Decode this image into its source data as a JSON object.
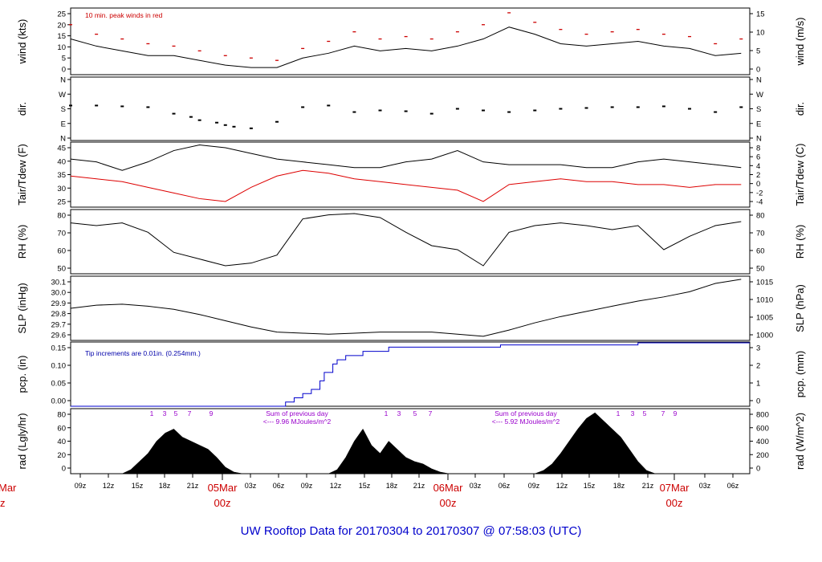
{
  "title": "UW Rooftop Data for 20170304  to  20170307 @ 07:58:03  (UTC)",
  "colors": {
    "frame": "#000000",
    "data": "#000000",
    "peak": "#cc0000",
    "dewpoint": "#dd0000",
    "precip": "#0000cc",
    "note_blue": "#0000aa",
    "note_purple": "#9900cc",
    "day_label": "#cc0000",
    "title": "#0000cc"
  },
  "time_axis": {
    "hour_ticks": [
      "09z",
      "12z",
      "15z",
      "18z",
      "21z",
      "03z",
      "06z",
      "09z",
      "12z",
      "15z",
      "18z",
      "21z",
      "03z",
      "06z",
      "09z",
      "12z",
      "15z",
      "18z",
      "21z",
      "03z",
      "06z"
    ],
    "day_labels": [
      {
        "date": "05Mar",
        "hour": "00z"
      },
      {
        "date": "06Mar",
        "hour": "00z"
      },
      {
        "date": "07Mar",
        "hour": "00z"
      }
    ],
    "left_cut_label": {
      "date": "Mar",
      "hour": "z"
    }
  },
  "chart_data": [
    {
      "id": "wind",
      "type": "line",
      "ylabel": "wind (kts)",
      "ylabel_right": "wind (m/s)",
      "ylim": [
        0,
        28
      ],
      "yticks": [
        "0",
        "5",
        "10",
        "15",
        "20",
        "25"
      ],
      "yticks_right": [
        "0",
        "5",
        "10",
        "15"
      ],
      "annotation": "10 min. peak winds in red",
      "series": [
        {
          "x": [
            0,
            3,
            6,
            9,
            12,
            15,
            18,
            21,
            24,
            27,
            30,
            33,
            36,
            39,
            42,
            45,
            48,
            51,
            54,
            57,
            60,
            63,
            66,
            69,
            72,
            75,
            78
          ],
          "values": [
            15,
            12,
            10,
            8,
            8,
            6,
            4,
            3,
            3,
            7,
            9,
            12,
            10,
            11,
            10,
            12,
            15,
            20,
            17,
            13,
            12,
            13,
            14,
            12,
            11,
            8,
            9
          ]
        },
        {
          "x": [
            0,
            3,
            6,
            9,
            12,
            15,
            18,
            21,
            24,
            27,
            30,
            33,
            36,
            39,
            42,
            45,
            48,
            51,
            54,
            57,
            60,
            63,
            66,
            69,
            72,
            75,
            78
          ],
          "values": [
            21,
            17,
            15,
            13,
            12,
            10,
            8,
            7,
            6,
            11,
            14,
            18,
            15,
            16,
            15,
            18,
            21,
            26,
            22,
            19,
            17,
            18,
            19,
            17,
            16,
            13,
            15
          ]
        }
      ]
    },
    {
      "id": "dir",
      "type": "scatter",
      "ylabel": "dir.",
      "ylabel_right": "dir.",
      "yticks": [
        "N",
        "E",
        "S",
        "W",
        "N"
      ],
      "yticks_right": [
        "N",
        "E",
        "S",
        "W",
        "N"
      ],
      "series": [
        {
          "x": [
            0,
            3,
            6,
            9,
            12,
            14,
            15,
            17,
            18,
            19,
            21,
            24,
            27,
            30,
            33,
            36,
            39,
            42,
            45,
            48,
            51,
            54,
            57,
            60,
            63,
            66,
            69,
            72,
            75,
            78
          ],
          "values": [
            200,
            200,
            195,
            190,
            150,
            130,
            110,
            95,
            80,
            70,
            60,
            100,
            190,
            200,
            160,
            170,
            165,
            150,
            180,
            170,
            160,
            170,
            180,
            185,
            190,
            190,
            195,
            180,
            160,
            190
          ]
        }
      ]
    },
    {
      "id": "temp",
      "type": "line",
      "ylabel": "Tair/Tdew (F)",
      "ylabel_right": "Tair/Tdew (C)",
      "ylim": [
        24,
        47
      ],
      "yticks": [
        "25",
        "30",
        "35",
        "40",
        "45"
      ],
      "yticks_right": [
        "-4",
        "-2",
        "0",
        "2",
        "4",
        "6",
        "8"
      ],
      "series": [
        {
          "x": [
            0,
            3,
            6,
            9,
            12,
            15,
            18,
            21,
            24,
            27,
            30,
            33,
            36,
            39,
            42,
            45,
            48,
            51,
            54,
            57,
            60,
            63,
            66,
            69,
            72,
            75,
            78
          ],
          "values": [
            41,
            40,
            37,
            40,
            44,
            46,
            45,
            43,
            41,
            40,
            39,
            38,
            38,
            40,
            41,
            44,
            40,
            39,
            39,
            39,
            38,
            38,
            40,
            41,
            40,
            39,
            38
          ]
        },
        {
          "x": [
            0,
            3,
            6,
            9,
            12,
            15,
            18,
            21,
            24,
            27,
            30,
            33,
            36,
            39,
            42,
            45,
            48,
            51,
            54,
            57,
            60,
            63,
            66,
            69,
            72,
            75,
            78
          ],
          "values": [
            35,
            34,
            33,
            31,
            29,
            27,
            26,
            31,
            35,
            37,
            36,
            34,
            33,
            32,
            31,
            30,
            26,
            32,
            33,
            34,
            33,
            33,
            32,
            32,
            31,
            32,
            32
          ]
        }
      ]
    },
    {
      "id": "rh",
      "type": "line",
      "ylabel": "RH (%)",
      "ylabel_right": "RH (%)",
      "ylim": [
        44,
        92
      ],
      "yticks": [
        "50",
        "60",
        "70",
        "80"
      ],
      "yticks_right": [
        "50",
        "60",
        "70",
        "80"
      ],
      "series": [
        {
          "x": [
            0,
            3,
            6,
            9,
            12,
            15,
            18,
            21,
            24,
            27,
            30,
            33,
            36,
            39,
            42,
            45,
            48,
            51,
            54,
            57,
            60,
            63,
            66,
            69,
            72,
            75,
            78
          ],
          "values": [
            82,
            80,
            82,
            75,
            60,
            55,
            50,
            52,
            58,
            85,
            88,
            89,
            86,
            75,
            65,
            62,
            50,
            75,
            80,
            82,
            80,
            77,
            80,
            62,
            72,
            80,
            83
          ]
        }
      ]
    },
    {
      "id": "slp",
      "type": "line",
      "ylabel": "SLP (inHg)",
      "ylabel_right": "SLP (hPa)",
      "ylim": [
        29.5,
        30.12
      ],
      "yticks": [
        "29.6",
        "29.7",
        "29.8",
        "29.9",
        "30.0",
        "30.1"
      ],
      "yticks_right": [
        "1000",
        "1005",
        "1010",
        "1015"
      ],
      "series": [
        {
          "x": [
            0,
            3,
            6,
            9,
            12,
            15,
            18,
            21,
            24,
            27,
            30,
            33,
            36,
            39,
            42,
            45,
            48,
            51,
            54,
            57,
            60,
            63,
            66,
            69,
            72,
            75,
            78
          ],
          "values": [
            29.81,
            29.84,
            29.85,
            29.83,
            29.8,
            29.75,
            29.69,
            29.63,
            29.58,
            29.57,
            29.56,
            29.57,
            29.58,
            29.58,
            29.58,
            29.56,
            29.54,
            29.6,
            29.67,
            29.73,
            29.78,
            29.83,
            29.88,
            29.92,
            29.97,
            30.05,
            30.09
          ]
        }
      ]
    },
    {
      "id": "pcp",
      "type": "line",
      "ylabel": "pcp. (in)",
      "ylabel_right": "pcp. (mm)",
      "ylim": [
        0,
        0.152
      ],
      "yticks": [
        "0.00",
        "0.05",
        "0.10",
        "0.15"
      ],
      "yticks_right": [
        "0",
        "1",
        "2",
        "3"
      ],
      "annotation": "Tip increments are 0.01in. (0.254mm.)",
      "series": [
        {
          "x": [
            0,
            24.5,
            25,
            26,
            27,
            28,
            29,
            29.5,
            30.5,
            31,
            32,
            34,
            37,
            39,
            44,
            50,
            66,
            79
          ],
          "values": [
            0,
            0,
            0.01,
            0.02,
            0.03,
            0.04,
            0.06,
            0.08,
            0.1,
            0.11,
            0.12,
            0.13,
            0.14,
            0.14,
            0.14,
            0.145,
            0.15,
            0.15
          ]
        }
      ]
    },
    {
      "id": "rad",
      "type": "area",
      "ylabel": "rad (Lgly/hr)",
      "ylabel_right": "rad (W/m^2)",
      "ylim": [
        0,
        80
      ],
      "yticks": [
        "0",
        "20",
        "40",
        "60",
        "80"
      ],
      "yticks_right": [
        "0",
        "200",
        "400",
        "600",
        "800"
      ],
      "annotations": [
        {
          "day": "1",
          "text": "Sum of previous day",
          "text2": "<--- 9.96 MJoules/m^2"
        },
        {
          "day": "2",
          "text": "Sum of previous day",
          "text2": "<--- 5.92 MJoules/m^2"
        }
      ],
      "sun_marks": [
        "1",
        "3",
        "5",
        "7",
        "9"
      ],
      "series": [
        {
          "x": [
            6,
            7,
            8,
            9,
            10,
            11,
            12,
            13,
            14,
            15,
            16,
            17,
            18,
            19,
            20,
            30,
            31,
            32,
            33,
            34,
            35,
            36,
            37,
            38,
            39,
            40,
            41,
            42,
            43,
            44,
            54,
            55,
            56,
            57,
            58,
            59,
            60,
            61,
            62,
            63,
            64,
            65,
            66,
            67,
            68
          ],
          "values": [
            0,
            5,
            15,
            25,
            40,
            50,
            55,
            45,
            40,
            35,
            30,
            20,
            8,
            2,
            0,
            0,
            5,
            20,
            40,
            55,
            35,
            25,
            40,
            30,
            20,
            15,
            12,
            6,
            2,
            0,
            0,
            4,
            12,
            25,
            40,
            55,
            68,
            75,
            65,
            55,
            45,
            30,
            15,
            4,
            0
          ]
        }
      ]
    }
  ]
}
